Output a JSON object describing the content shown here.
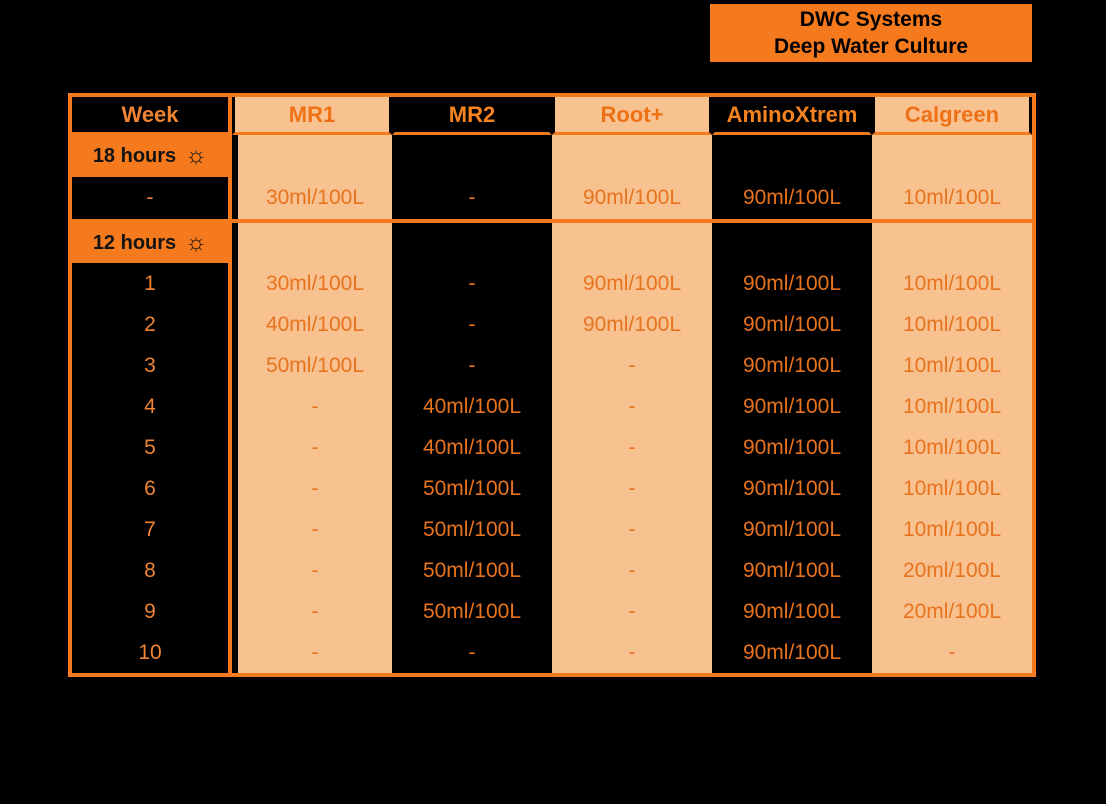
{
  "title": {
    "line1": "DWC Systems",
    "line2": "Deep Water Culture"
  },
  "icons": {
    "sun": "☼"
  },
  "colors": {
    "accent_orange": "#F5791D",
    "peach": "#F8C190",
    "background": "#000000",
    "value_text": "#E8731E"
  },
  "chart_data": {
    "type": "table",
    "title": "DWC Systems Deep Water Culture",
    "week_header": "Week",
    "columns": [
      {
        "label": "MR1",
        "theme": "peach"
      },
      {
        "label": "MR2",
        "theme": "black"
      },
      {
        "label": "Root+",
        "theme": "peach"
      },
      {
        "label": "AminoXtrem",
        "theme": "black"
      },
      {
        "label": "Calgreen",
        "theme": "peach"
      }
    ],
    "sections": [
      {
        "phase_label": "18 hours",
        "rows": [
          {
            "week": "-",
            "values": [
              "30ml/100L",
              "-",
              "90ml/100L",
              "90ml/100L",
              "10ml/100L"
            ]
          }
        ]
      },
      {
        "phase_label": "12 hours",
        "rows": [
          {
            "week": "1",
            "values": [
              "30ml/100L",
              "-",
              "90ml/100L",
              "90ml/100L",
              "10ml/100L"
            ]
          },
          {
            "week": "2",
            "values": [
              "40ml/100L",
              "-",
              "90ml/100L",
              "90ml/100L",
              "10ml/100L"
            ]
          },
          {
            "week": "3",
            "values": [
              "50ml/100L",
              "-",
              "-",
              "90ml/100L",
              "10ml/100L"
            ]
          },
          {
            "week": "4",
            "values": [
              "-",
              "40ml/100L",
              "-",
              "90ml/100L",
              "10ml/100L"
            ]
          },
          {
            "week": "5",
            "values": [
              "-",
              "40ml/100L",
              "-",
              "90ml/100L",
              "10ml/100L"
            ]
          },
          {
            "week": "6",
            "values": [
              "-",
              "50ml/100L",
              "-",
              "90ml/100L",
              "10ml/100L"
            ]
          },
          {
            "week": "7",
            "values": [
              "-",
              "50ml/100L",
              "-",
              "90ml/100L",
              "10ml/100L"
            ]
          },
          {
            "week": "8",
            "values": [
              "-",
              "50ml/100L",
              "-",
              "90ml/100L",
              "20ml/100L"
            ]
          },
          {
            "week": "9",
            "values": [
              "-",
              "50ml/100L",
              "-",
              "90ml/100L",
              "20ml/100L"
            ]
          },
          {
            "week": "10",
            "values": [
              "-",
              "-",
              "-",
              "90ml/100L",
              "-"
            ]
          }
        ]
      }
    ]
  }
}
